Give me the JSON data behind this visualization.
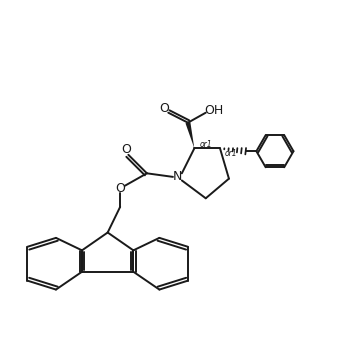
{
  "bg_color": "#ffffff",
  "line_color": "#1a1a1a",
  "line_width": 1.4,
  "fig_width": 3.58,
  "fig_height": 3.42,
  "dpi": 100,
  "xlim": [
    0,
    10
  ],
  "ylim": [
    0,
    9.55
  ]
}
